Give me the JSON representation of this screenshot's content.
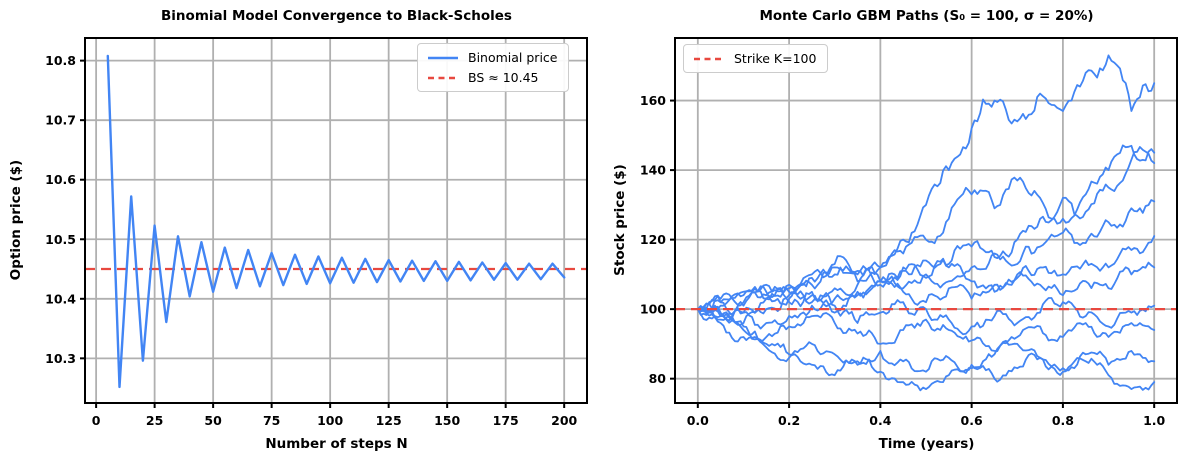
{
  "colors": {
    "line_blue": "#4285f4",
    "line_red": "#e8483f",
    "grid": "#b0b0b0",
    "spine": "#000000",
    "text": "#000000",
    "background": "#ffffff"
  },
  "chart_data": [
    {
      "type": "line",
      "title": "Binomial Model Convergence to Black-Scholes",
      "xlabel": "Number of steps N",
      "ylabel": "Option price ($)",
      "xlim": [
        -4.75,
        209.75
      ],
      "ylim": [
        10.225,
        10.838
      ],
      "grid": true,
      "xticks": {
        "values": [
          0,
          25,
          50,
          75,
          100,
          125,
          150,
          175,
          200
        ],
        "labels": [
          "0",
          "25",
          "50",
          "75",
          "100",
          "125",
          "150",
          "175",
          "200"
        ]
      },
      "yticks": {
        "values": [
          10.3,
          10.4,
          10.5,
          10.6,
          10.7,
          10.8
        ],
        "labels": [
          "10.3",
          "10.4",
          "10.5",
          "10.6",
          "10.7",
          "10.8"
        ]
      },
      "legend": {
        "position": "upper right",
        "entries": [
          {
            "label": "Binomial price",
            "style": "solid"
          },
          {
            "label": "BS ≈ 10.45",
            "style": "dashed"
          }
        ]
      },
      "series": {
        "name": "Binomial price",
        "x": [
          5,
          10,
          15,
          20,
          25,
          30,
          35,
          40,
          45,
          50,
          55,
          60,
          65,
          70,
          75,
          80,
          85,
          90,
          95,
          100,
          105,
          110,
          115,
          120,
          125,
          130,
          135,
          140,
          145,
          150,
          155,
          160,
          165,
          170,
          175,
          180,
          185,
          190,
          195,
          200
        ],
        "y": [
          10.808,
          10.252,
          10.572,
          10.296,
          10.523,
          10.361,
          10.505,
          10.404,
          10.495,
          10.412,
          10.486,
          10.418,
          10.482,
          10.421,
          10.477,
          10.423,
          10.474,
          10.425,
          10.471,
          10.426,
          10.469,
          10.427,
          10.467,
          10.428,
          10.465,
          10.429,
          10.464,
          10.43,
          10.463,
          10.43,
          10.462,
          10.431,
          10.461,
          10.432,
          10.46,
          10.432,
          10.459,
          10.433,
          10.459,
          10.436
        ]
      },
      "reference_line": {
        "label": "BS ≈ 10.45",
        "value": 10.45
      }
    },
    {
      "type": "line",
      "title": "Monte Carlo GBM Paths (S₀ = 100, σ = 20%)",
      "xlabel": "Time (years)",
      "ylabel": "Stock price ($)",
      "xlim": [
        -0.05,
        1.05
      ],
      "ylim": [
        73,
        178
      ],
      "grid": true,
      "xticks": {
        "values": [
          0,
          0.2,
          0.4,
          0.6,
          0.8,
          1.0
        ],
        "labels": [
          "0.0",
          "0.2",
          "0.4",
          "0.6",
          "0.8",
          "1.0"
        ]
      },
      "yticks": {
        "values": [
          80,
          100,
          120,
          140,
          160
        ],
        "labels": [
          "80",
          "100",
          "120",
          "140",
          "160"
        ]
      },
      "legend": {
        "position": "upper left",
        "entries": [
          {
            "label": "Strike K=100",
            "style": "dashed"
          }
        ]
      },
      "t": [
        0,
        0.05,
        0.1,
        0.15,
        0.2,
        0.25,
        0.3,
        0.35,
        0.4,
        0.45,
        0.5,
        0.55,
        0.6,
        0.65,
        0.7,
        0.75,
        0.8,
        0.85,
        0.9,
        0.95,
        1.0
      ],
      "paths": [
        [
          100,
          103,
          101,
          104,
          102,
          105,
          103,
          107,
          112,
          120,
          130,
          140,
          152,
          160,
          154,
          162,
          157,
          168,
          173,
          157,
          165
        ],
        [
          100,
          98,
          102,
          105,
          103,
          107,
          110,
          108,
          112,
          116,
          120,
          126,
          133,
          129,
          137,
          132,
          126,
          133,
          140,
          147,
          145
        ],
        [
          100,
          102,
          105,
          103,
          107,
          110,
          113,
          111,
          108,
          112,
          109,
          113,
          118,
          115,
          120,
          126,
          132,
          128,
          135,
          143,
          142
        ],
        [
          100,
          99,
          96,
          100,
          104,
          102,
          106,
          104,
          108,
          106,
          110,
          108,
          112,
          116,
          113,
          118,
          122,
          119,
          125,
          129,
          131
        ],
        [
          100,
          101,
          104,
          107,
          105,
          109,
          112,
          110,
          107,
          111,
          114,
          112,
          108,
          105,
          109,
          112,
          110,
          114,
          112,
          117,
          121
        ],
        [
          100,
          97,
          99,
          103,
          106,
          104,
          101,
          105,
          108,
          105,
          102,
          106,
          103,
          107,
          110,
          107,
          104,
          108,
          106,
          110,
          112
        ],
        [
          100,
          102,
          99,
          96,
          98,
          101,
          99,
          96,
          99,
          102,
          100,
          97,
          95,
          98,
          96,
          99,
          102,
          98,
          95,
          99,
          101
        ],
        [
          100,
          98,
          95,
          92,
          95,
          98,
          96,
          93,
          90,
          94,
          97,
          94,
          91,
          88,
          92,
          95,
          92,
          96,
          92,
          96,
          94
        ],
        [
          100,
          96,
          92,
          89,
          86,
          90,
          87,
          84,
          88,
          85,
          82,
          86,
          83,
          87,
          90,
          86,
          83,
          87,
          84,
          88,
          85
        ],
        [
          100,
          98,
          94,
          90,
          87,
          84,
          81,
          85,
          82,
          79,
          77,
          81,
          84,
          80,
          83,
          86,
          82,
          85,
          81,
          77,
          79
        ]
      ],
      "reference_line": {
        "label": "Strike K=100",
        "value": 100
      }
    }
  ]
}
